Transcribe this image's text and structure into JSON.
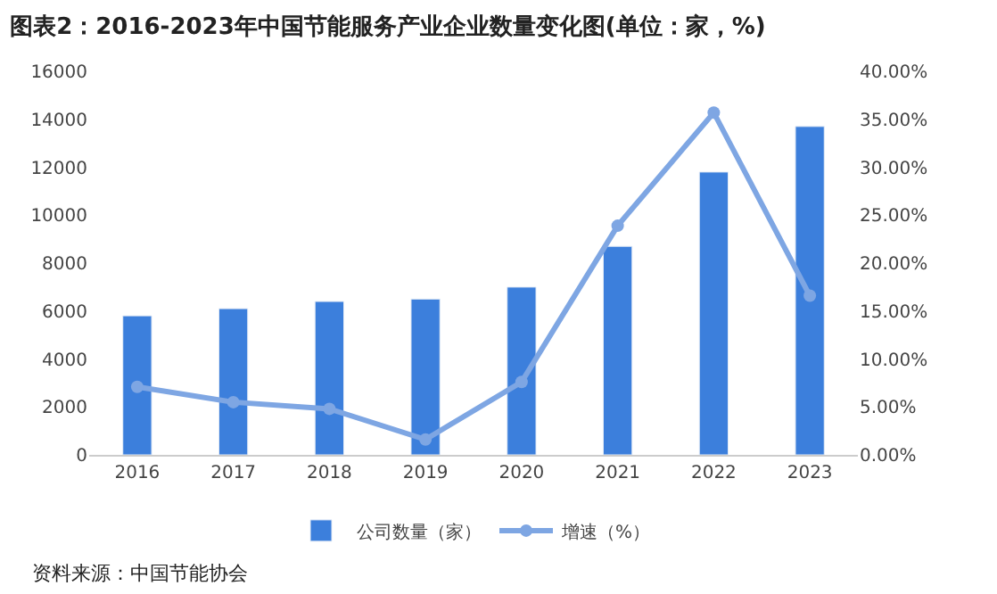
{
  "chart_data": {
    "type": "bar",
    "title": "图表2：2016-2023年中国节能服务产业企业数量变化图(单位：家，%)",
    "categories": [
      "2016",
      "2017",
      "2018",
      "2019",
      "2020",
      "2021",
      "2022",
      "2023"
    ],
    "series": [
      {
        "name": "公司数量（家）",
        "color": "#3c7fdc",
        "values": [
          5800,
          6100,
          6400,
          6500,
          7000,
          8700,
          11800,
          13700
        ]
      },
      {
        "name": "增速（%）",
        "type": "line",
        "axis": "y2",
        "color": "#7ea6e3",
        "marker": "circle",
        "values": [
          7.1,
          5.5,
          4.8,
          1.6,
          7.6,
          23.9,
          35.7,
          16.6
        ]
      }
    ],
    "ylim": [
      0,
      16000
    ],
    "yticks": [
      0,
      2000,
      4000,
      6000,
      8000,
      10000,
      12000,
      14000,
      16000
    ],
    "y2lim": [
      0,
      40
    ],
    "y2ticks": [
      {
        "value": 0,
        "label": "0.00%"
      },
      {
        "value": 5,
        "label": "5.00%"
      },
      {
        "value": 10,
        "label": "10.00%"
      },
      {
        "value": 15,
        "label": "15.00%"
      },
      {
        "value": 20,
        "label": "20.00%"
      },
      {
        "value": 25,
        "label": "25.00%"
      },
      {
        "value": 30,
        "label": "30.00%"
      },
      {
        "value": 35,
        "label": "35.00%"
      },
      {
        "value": 40,
        "label": "40.00%"
      }
    ],
    "legend": "bottom",
    "annotations": [
      "资料来源：中国节能协会"
    ]
  }
}
